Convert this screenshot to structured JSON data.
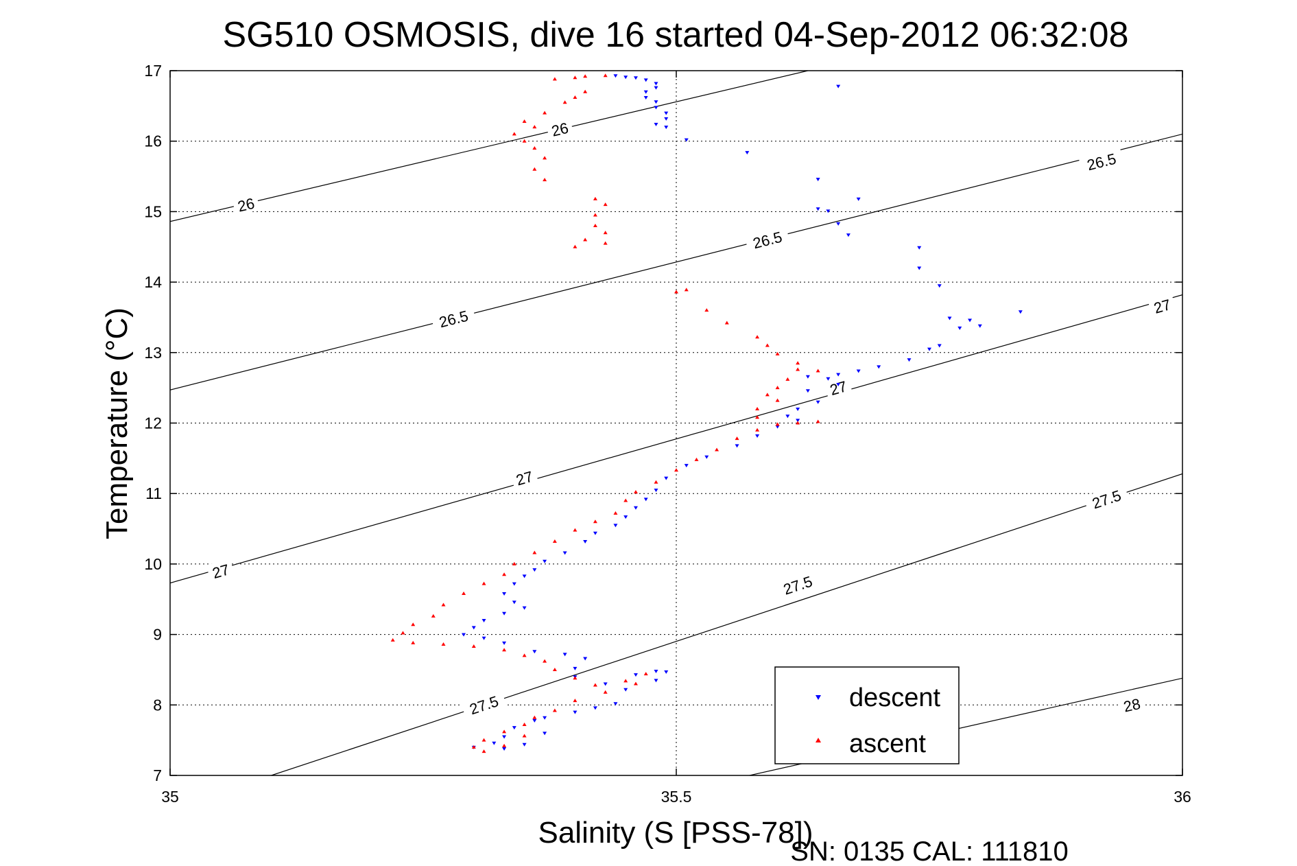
{
  "chart_data": {
    "type": "scatter",
    "title": "SG510 OSMOSIS, dive 16 started 04-Sep-2012 06:32:08",
    "xlabel": "Salinity (S [PSS-78])",
    "ylabel": "Temperature (°C)",
    "footer": "SN: 0135  CAL: 111810",
    "xlim": [
      35,
      36
    ],
    "ylim": [
      7,
      17
    ],
    "xticks": [
      "35",
      "35.5",
      "36"
    ],
    "yticks": [
      "7",
      "8",
      "9",
      "10",
      "11",
      "12",
      "13",
      "14",
      "15",
      "16",
      "17"
    ],
    "grid": true,
    "legend_placement": "bottom-right",
    "series": [
      {
        "name": "descent",
        "marker": "triangle-down",
        "color": "#0000ff",
        "points": [
          [
            35.44,
            16.93
          ],
          [
            35.45,
            16.91
          ],
          [
            35.46,
            16.9
          ],
          [
            35.47,
            16.87
          ],
          [
            35.48,
            16.82
          ],
          [
            35.48,
            16.76
          ],
          [
            35.47,
            16.7
          ],
          [
            35.47,
            16.62
          ],
          [
            35.48,
            16.56
          ],
          [
            35.48,
            16.48
          ],
          [
            35.49,
            16.4
          ],
          [
            35.49,
            16.32
          ],
          [
            35.48,
            16.24
          ],
          [
            35.49,
            16.2
          ],
          [
            35.51,
            16.02
          ],
          [
            35.57,
            15.84
          ],
          [
            35.66,
            16.78
          ],
          [
            35.64,
            15.46
          ],
          [
            35.64,
            15.04
          ],
          [
            35.65,
            15.01
          ],
          [
            35.66,
            14.83
          ],
          [
            35.68,
            15.18
          ],
          [
            35.67,
            14.67
          ],
          [
            35.74,
            14.49
          ],
          [
            35.74,
            14.2
          ],
          [
            35.76,
            13.95
          ],
          [
            35.77,
            13.49
          ],
          [
            35.79,
            13.46
          ],
          [
            35.8,
            13.38
          ],
          [
            35.84,
            13.58
          ],
          [
            35.78,
            13.35
          ],
          [
            35.75,
            13.05
          ],
          [
            35.76,
            13.1
          ],
          [
            35.73,
            12.9
          ],
          [
            35.7,
            12.8
          ],
          [
            35.68,
            12.74
          ],
          [
            35.66,
            12.69
          ],
          [
            35.65,
            12.63
          ],
          [
            35.66,
            12.55
          ],
          [
            35.63,
            12.66
          ],
          [
            35.63,
            12.46
          ],
          [
            35.64,
            12.3
          ],
          [
            35.62,
            12.2
          ],
          [
            35.61,
            12.1
          ],
          [
            35.62,
            12.04
          ],
          [
            35.6,
            11.95
          ],
          [
            35.58,
            11.82
          ],
          [
            35.56,
            11.68
          ],
          [
            35.53,
            11.52
          ],
          [
            35.51,
            11.4
          ],
          [
            35.49,
            11.22
          ],
          [
            35.48,
            11.05
          ],
          [
            35.47,
            10.92
          ],
          [
            35.46,
            10.8
          ],
          [
            35.45,
            10.67
          ],
          [
            35.44,
            10.55
          ],
          [
            35.42,
            10.44
          ],
          [
            35.41,
            10.32
          ],
          [
            35.39,
            10.16
          ],
          [
            35.37,
            10.04
          ],
          [
            35.36,
            9.92
          ],
          [
            35.35,
            9.83
          ],
          [
            35.34,
            9.72
          ],
          [
            35.33,
            9.58
          ],
          [
            35.34,
            9.46
          ],
          [
            35.35,
            9.38
          ],
          [
            35.33,
            9.3
          ],
          [
            35.31,
            9.2
          ],
          [
            35.3,
            9.1
          ],
          [
            35.29,
            9.0
          ],
          [
            35.31,
            8.95
          ],
          [
            35.33,
            8.88
          ],
          [
            35.36,
            8.76
          ],
          [
            35.39,
            8.72
          ],
          [
            35.41,
            8.66
          ],
          [
            35.4,
            8.52
          ],
          [
            35.4,
            8.4
          ],
          [
            35.43,
            8.3
          ],
          [
            35.46,
            8.43
          ],
          [
            35.48,
            8.48
          ],
          [
            35.49,
            8.47
          ],
          [
            35.48,
            8.35
          ],
          [
            35.45,
            8.22
          ],
          [
            35.44,
            8.02
          ],
          [
            35.42,
            7.96
          ],
          [
            35.4,
            7.9
          ],
          [
            35.37,
            7.82
          ],
          [
            35.36,
            7.78
          ],
          [
            35.34,
            7.68
          ],
          [
            35.33,
            7.55
          ],
          [
            35.32,
            7.46
          ],
          [
            35.3,
            7.4
          ],
          [
            35.33,
            7.38
          ],
          [
            35.35,
            7.44
          ],
          [
            35.37,
            7.6
          ]
        ]
      },
      {
        "name": "ascent",
        "marker": "triangle-up",
        "color": "#ff0000",
        "points": [
          [
            35.43,
            16.93
          ],
          [
            35.41,
            16.92
          ],
          [
            35.4,
            16.9
          ],
          [
            35.38,
            16.88
          ],
          [
            35.41,
            16.7
          ],
          [
            35.4,
            16.62
          ],
          [
            35.39,
            16.55
          ],
          [
            35.37,
            16.4
          ],
          [
            35.35,
            16.28
          ],
          [
            35.36,
            16.2
          ],
          [
            35.34,
            16.1
          ],
          [
            35.35,
            16.0
          ],
          [
            35.36,
            15.9
          ],
          [
            35.37,
            15.76
          ],
          [
            35.36,
            15.6
          ],
          [
            35.37,
            15.45
          ],
          [
            35.42,
            15.18
          ],
          [
            35.43,
            15.1
          ],
          [
            35.42,
            14.95
          ],
          [
            35.42,
            14.8
          ],
          [
            35.41,
            14.6
          ],
          [
            35.4,
            14.5
          ],
          [
            35.43,
            14.7
          ],
          [
            35.43,
            14.55
          ],
          [
            35.5,
            13.86
          ],
          [
            35.51,
            13.89
          ],
          [
            35.53,
            13.6
          ],
          [
            35.55,
            13.42
          ],
          [
            35.58,
            13.22
          ],
          [
            35.59,
            13.1
          ],
          [
            35.6,
            12.98
          ],
          [
            35.62,
            12.85
          ],
          [
            35.62,
            12.76
          ],
          [
            35.64,
            12.74
          ],
          [
            35.61,
            12.62
          ],
          [
            35.6,
            12.5
          ],
          [
            35.59,
            12.4
          ],
          [
            35.6,
            12.32
          ],
          [
            35.58,
            12.2
          ],
          [
            35.58,
            12.08
          ],
          [
            35.6,
            11.98
          ],
          [
            35.62,
            12.0
          ],
          [
            35.64,
            12.02
          ],
          [
            35.6,
            11.98
          ],
          [
            35.58,
            11.9
          ],
          [
            35.56,
            11.78
          ],
          [
            35.54,
            11.62
          ],
          [
            35.52,
            11.48
          ],
          [
            35.5,
            11.33
          ],
          [
            35.48,
            11.16
          ],
          [
            35.46,
            11.02
          ],
          [
            35.45,
            10.9
          ],
          [
            35.44,
            10.72
          ],
          [
            35.42,
            10.6
          ],
          [
            35.4,
            10.48
          ],
          [
            35.38,
            10.32
          ],
          [
            35.36,
            10.16
          ],
          [
            35.34,
            10.0
          ],
          [
            35.33,
            9.85
          ],
          [
            35.31,
            9.72
          ],
          [
            35.29,
            9.58
          ],
          [
            35.27,
            9.42
          ],
          [
            35.26,
            9.26
          ],
          [
            35.24,
            9.14
          ],
          [
            35.23,
            9.02
          ],
          [
            35.22,
            8.92
          ],
          [
            35.24,
            8.88
          ],
          [
            35.27,
            8.86
          ],
          [
            35.3,
            8.83
          ],
          [
            35.33,
            8.78
          ],
          [
            35.35,
            8.7
          ],
          [
            35.37,
            8.62
          ],
          [
            35.38,
            8.5
          ],
          [
            35.4,
            8.38
          ],
          [
            35.42,
            8.28
          ],
          [
            35.45,
            8.34
          ],
          [
            35.47,
            8.44
          ],
          [
            35.46,
            8.3
          ],
          [
            35.43,
            8.18
          ],
          [
            35.4,
            8.06
          ],
          [
            35.38,
            7.92
          ],
          [
            35.36,
            7.82
          ],
          [
            35.35,
            7.72
          ],
          [
            35.33,
            7.62
          ],
          [
            35.31,
            7.5
          ],
          [
            35.3,
            7.4
          ],
          [
            35.31,
            7.34
          ],
          [
            35.33,
            7.42
          ],
          [
            35.35,
            7.56
          ]
        ]
      }
    ],
    "isopycnals": [
      {
        "label": "26",
        "s0": 35,
        "t0": 14.86,
        "s1": 35.63,
        "t1": 17.0,
        "label_positions": [
          [
            35.075,
            15.1
          ],
          [
            35.385,
            16.17
          ]
        ]
      },
      {
        "label": "26.5",
        "s0": 35,
        "t0": 12.47,
        "s1": 36,
        "t1": 16.1,
        "label_positions": [
          [
            35.28,
            13.48
          ],
          [
            35.59,
            14.6
          ],
          [
            35.92,
            15.71
          ]
        ]
      },
      {
        "label": "27",
        "s0": 35,
        "t0": 9.73,
        "s1": 36,
        "t1": 13.82,
        "label_positions": [
          [
            35.05,
            9.9
          ],
          [
            35.35,
            11.22
          ],
          [
            35.66,
            12.5
          ],
          [
            35.98,
            13.66
          ]
        ]
      },
      {
        "label": "27.5",
        "s0": 35.1,
        "t0": 7.0,
        "s1": 36,
        "t1": 11.28,
        "label_positions": [
          [
            35.31,
            8.0
          ],
          [
            35.62,
            9.7
          ],
          [
            35.925,
            10.92
          ]
        ]
      },
      {
        "label": "28",
        "s0": 35.56,
        "t0": 6.96,
        "s1": 36,
        "t1": 8.38,
        "label_positions": [
          [
            35.95,
            8.0
          ]
        ]
      }
    ]
  }
}
